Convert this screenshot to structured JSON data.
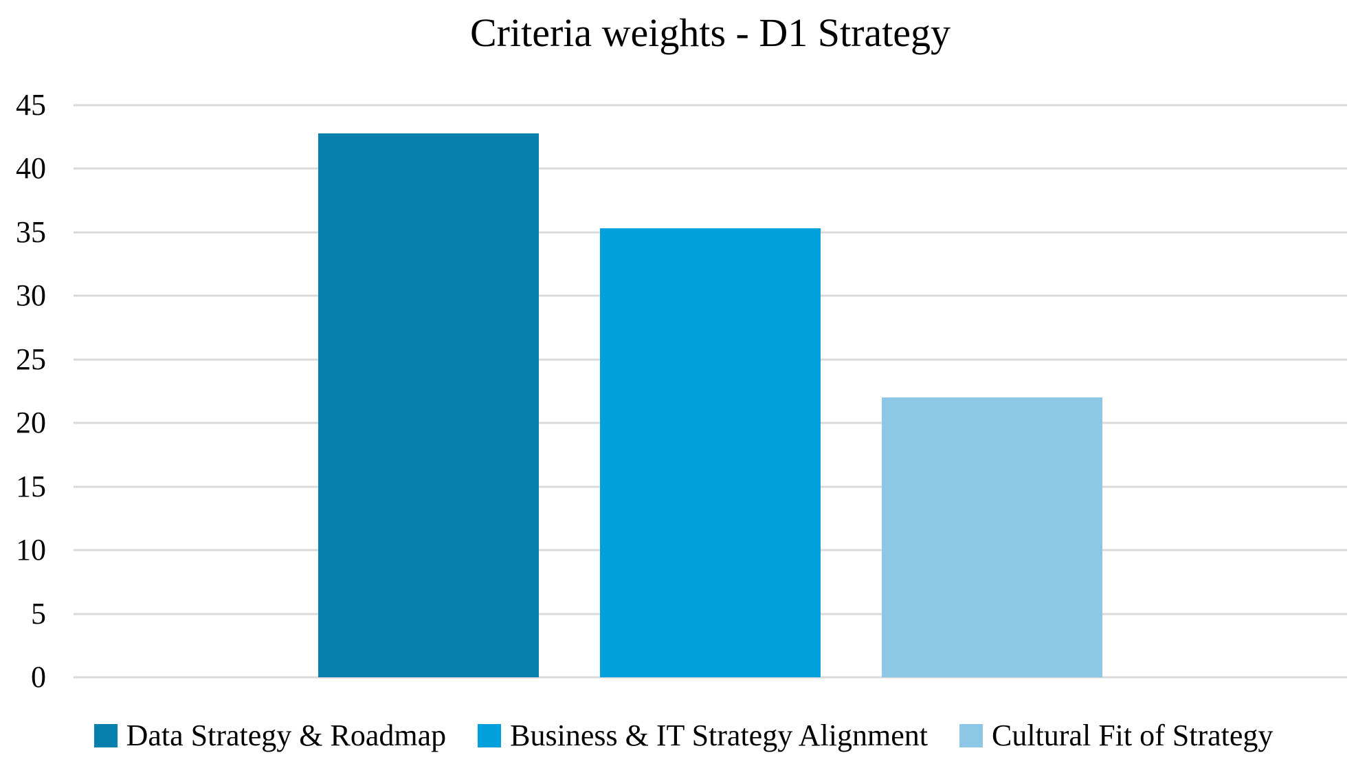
{
  "figure": {
    "title": "Criteria weights - D1 Strategy",
    "text_color": "#000000",
    "background_color": "#ffffff"
  },
  "chart_data": {
    "type": "bar",
    "title": "Criteria weights - D1 Strategy",
    "categories": [
      "Data Strategy & Roadmap",
      "Business & IT Strategy Alignment",
      "Cultural Fit of Strategy"
    ],
    "values": [
      42.8,
      35.3,
      22
    ],
    "bar_colors": [
      "#0880AD",
      "#00A0DC",
      "#8EC7E5"
    ],
    "xlabel": "",
    "ylabel": "",
    "ylim": [
      0,
      45
    ],
    "ytick_step": 5,
    "yticks": [
      45,
      40,
      35,
      30,
      25,
      20,
      15,
      10,
      5,
      0
    ],
    "grid": true,
    "gridline_color": "#D9D9D9",
    "legend_position": "bottom",
    "legend_items": [
      {
        "label": "Data Strategy & Roadmap",
        "color": "#0880AD"
      },
      {
        "label": "Business & IT Strategy Alignment",
        "color": "#00A0DC"
      },
      {
        "label": "Cultural Fit of Strategy",
        "color": "#8EC7E5"
      }
    ]
  }
}
